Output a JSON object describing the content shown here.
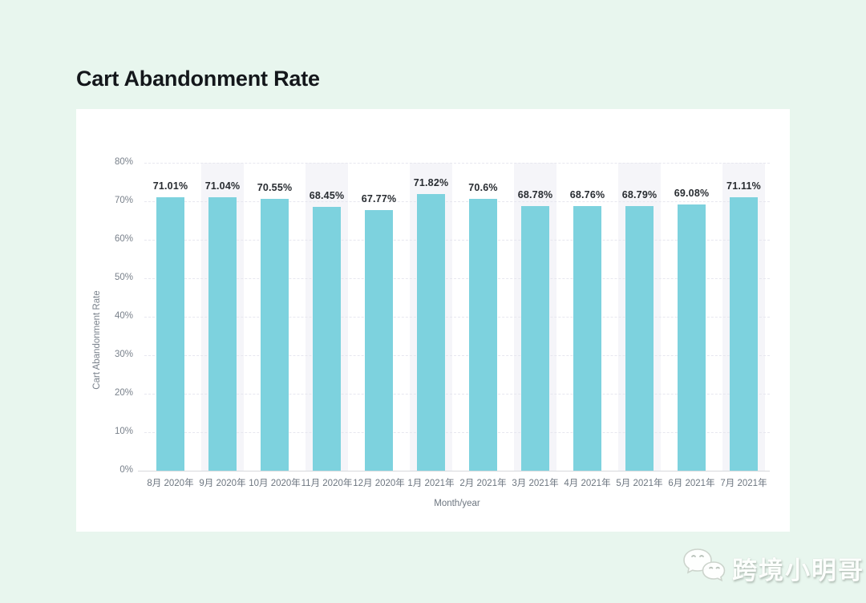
{
  "page": {
    "title": "Cart Abandonment Rate",
    "background_color": "#e8f6ee",
    "card_color": "#ffffff"
  },
  "watermark": {
    "icon": "wechat-icon",
    "text": "跨境小明哥"
  },
  "chart_data": {
    "type": "bar",
    "title": "Cart Abandonment Rate",
    "xlabel": "Month/year",
    "ylabel": "Cart Abandonment Rate",
    "categories": [
      "8月 2020年",
      "9月 2020年",
      "10月 2020年",
      "11月 2020年",
      "12月 2020年",
      "1月 2021年",
      "2月 2021年",
      "3月 2021年",
      "4月 2021年",
      "5月 2021年",
      "6月 2021年",
      "7月 2021年"
    ],
    "values": [
      71.01,
      71.04,
      70.55,
      68.45,
      67.77,
      71.82,
      70.6,
      68.78,
      68.76,
      68.79,
      69.08,
      71.11
    ],
    "value_labels": [
      "71.01%",
      "71.04%",
      "70.55%",
      "68.45%",
      "67.77%",
      "71.82%",
      "70.6%",
      "68.78%",
      "68.76%",
      "68.79%",
      "69.08%",
      "71.11%"
    ],
    "yticks": [
      "0%",
      "10%",
      "20%",
      "30%",
      "40%",
      "50%",
      "60%",
      "70%",
      "80%"
    ],
    "ytick_values": [
      0,
      10,
      20,
      30,
      40,
      50,
      60,
      70,
      80
    ],
    "ylim": [
      0,
      80
    ],
    "grid": true,
    "legend": "none",
    "bar_color": "#7dd2de",
    "band_color": "#f5f5f9",
    "banded_columns": [
      1,
      3,
      5,
      7,
      9,
      11
    ]
  }
}
